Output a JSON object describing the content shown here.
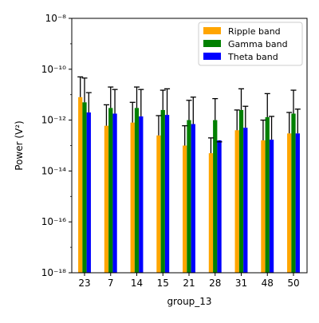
{
  "chart_data": {
    "type": "bar",
    "xlabel": "group_13",
    "ylabel": "Power (V²)",
    "yscale": "log",
    "ylim": [
      1e-18,
      1e-08
    ],
    "y_ticks": [
      {
        "value": 1e-18,
        "label": "10⁻¹⁸"
      },
      {
        "value": 1e-16,
        "label": "10⁻¹⁶"
      },
      {
        "value": 1e-14,
        "label": "10⁻¹⁴"
      },
      {
        "value": 1e-12,
        "label": "10⁻¹²"
      },
      {
        "value": 1e-10,
        "label": "10⁻¹⁰"
      },
      {
        "value": 1e-08,
        "label": "10⁻⁸"
      }
    ],
    "categories": [
      "23",
      "7",
      "14",
      "15",
      "21",
      "28",
      "31",
      "48",
      "50"
    ],
    "grid": false,
    "legend_position": "top-right",
    "series": [
      {
        "name": "Ripple band",
        "color": "#ffa500",
        "values": [
          8e-12,
          6e-13,
          8e-13,
          2.5e-13,
          1e-13,
          5e-14,
          4e-13,
          1.6e-13,
          3e-13
        ],
        "err_upper": [
          5e-11,
          4e-12,
          5e-12,
          1.5e-12,
          6e-13,
          2e-13,
          2.5e-12,
          1e-12,
          2e-12
        ]
      },
      {
        "name": "Gamma band",
        "color": "#008000",
        "values": [
          5e-12,
          3e-12,
          3e-12,
          2.5e-12,
          1e-12,
          1e-12,
          2.5e-12,
          1.3e-12,
          1.8e-12
        ],
        "err_upper": [
          4.5e-11,
          2e-11,
          2e-11,
          1.5e-11,
          6e-12,
          7e-12,
          1.7e-11,
          1.1e-11,
          1.5e-11
        ]
      },
      {
        "name": "Theta band",
        "color": "#0000ff",
        "values": [
          2e-12,
          1.8e-12,
          1.4e-12,
          1.6e-12,
          7e-13,
          1.6e-13,
          5e-13,
          1.7e-13,
          3e-13
        ],
        "err_upper": [
          1.2e-11,
          1.6e-11,
          1.6e-11,
          1.7e-11,
          8e-12,
          1.4e-13,
          3.5e-12,
          1.4e-12,
          2.7e-12
        ]
      }
    ]
  }
}
